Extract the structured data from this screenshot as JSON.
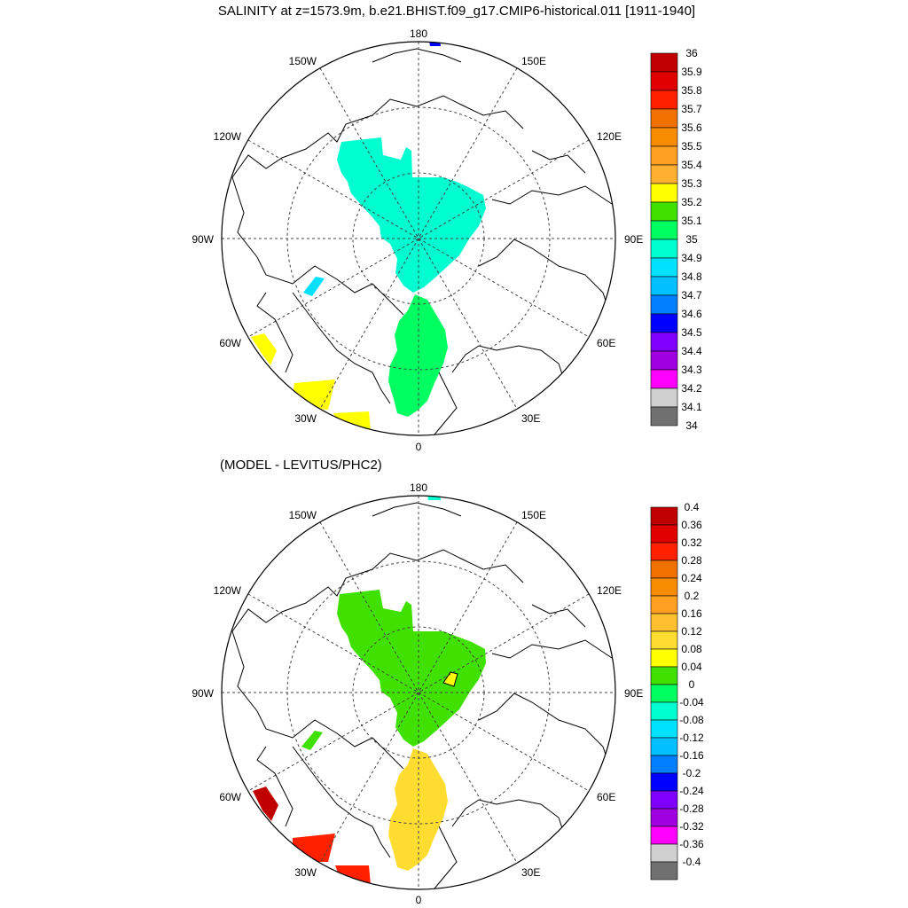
{
  "title": "SALINITY at z=1573.9m, b.e21.BHIST.f09_g17.CMIP6-historical.011 [1911-1940]",
  "subtitle": "(MODEL - LEVITUS/PHC2)",
  "lon_labels": {
    "top": "180",
    "bottom": "0",
    "left": "90W",
    "right": "90E",
    "upper_left_outer": "150W",
    "upper_left_inner": "120W",
    "upper_right_outer": "150E",
    "upper_right_inner": "120E",
    "lower_left_outer": "60W",
    "lower_left_inner": "30W",
    "lower_right_outer": "60E",
    "lower_right_inner": "30E"
  },
  "colorbar_top": {
    "labels": [
      "36",
      "35.9",
      "35.8",
      "35.7",
      "35.6",
      "35.5",
      "35.4",
      "35.3",
      "35.2",
      "35.1",
      "35",
      "34.9",
      "34.8",
      "34.7",
      "34.6",
      "34.5",
      "34.4",
      "34.3",
      "34.2",
      "34.1",
      "34"
    ],
    "colors": [
      "#c00000",
      "#e00000",
      "#ff2000",
      "#f07000",
      "#f88c00",
      "#ffa020",
      "#ffb030",
      "#ffff00",
      "#40e000",
      "#00ff60",
      "#00ffd0",
      "#00e0ff",
      "#00c0ff",
      "#0080ff",
      "#0000ff",
      "#8000ff",
      "#a000e0",
      "#ff00ff",
      "#d0d0d0",
      "#707070"
    ]
  },
  "colorbar_bottom": {
    "labels": [
      "0.4",
      "0.36",
      "0.32",
      "0.28",
      "0.24",
      "0.2",
      "0.16",
      "0.12",
      "0.08",
      "0.04",
      "0",
      "-0.04",
      "-0.08",
      "-0.12",
      "-0.16",
      "-0.2",
      "-0.24",
      "-0.28",
      "-0.32",
      "-0.36",
      "-0.4"
    ],
    "colors": [
      "#c00000",
      "#e00000",
      "#ff2000",
      "#f07000",
      "#f88c00",
      "#ffa020",
      "#ffc030",
      "#ffdc30",
      "#ffff00",
      "#40e000",
      "#00ff60",
      "#00ffd0",
      "#00e0ff",
      "#00c0ff",
      "#0080ff",
      "#0000ff",
      "#8000ff",
      "#a000e0",
      "#ff00ff",
      "#d0d0d0",
      "#707070"
    ]
  },
  "fields": {
    "top": {
      "arctic_basin": "#00ffd0",
      "nordic_seas": "#00ff60",
      "labrador": "#ffff00",
      "baffin": "#00e0ff",
      "pacific_spot": "#0000ff"
    },
    "bottom": {
      "arctic_basin": "#40e000",
      "nordic_seas": "#ffdc30",
      "labrador": "#c00000",
      "irminger": "#ff2000",
      "baffin": "#40e000",
      "pacific_spot": "#00ffd0"
    }
  }
}
